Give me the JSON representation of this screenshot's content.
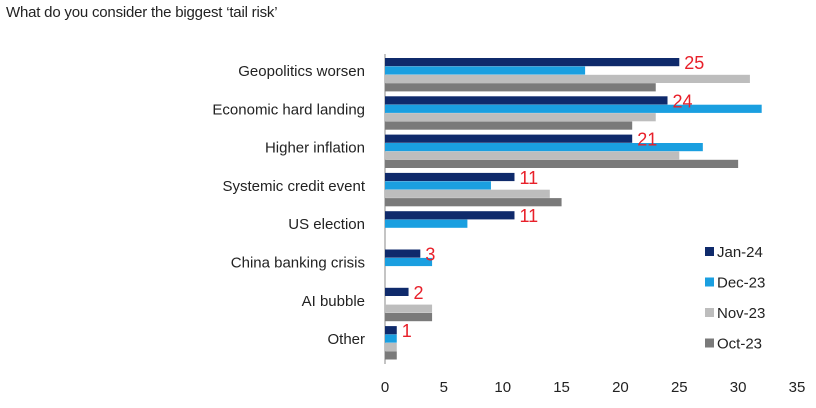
{
  "chart_data": {
    "type": "bar",
    "orientation": "horizontal",
    "title": "What do you consider the biggest ‘tail risk’",
    "categories": [
      "Geopolitics worsen",
      "Economic hard landing",
      "Higher inflation",
      "Systemic credit event",
      "US election",
      "China banking crisis",
      "AI bubble",
      "Other"
    ],
    "series": [
      {
        "name": "Jan-24",
        "color": "#0f2a6b",
        "values": [
          25,
          24,
          21,
          11,
          11,
          3,
          2,
          1
        ]
      },
      {
        "name": "Dec-23",
        "color": "#1a9fe0",
        "values": [
          17,
          32,
          27,
          9,
          7,
          4,
          null,
          1
        ]
      },
      {
        "name": "Nov-23",
        "color": "#bdbdbd",
        "values": [
          31,
          23,
          25,
          14,
          null,
          null,
          4,
          1
        ]
      },
      {
        "name": "Oct-23",
        "color": "#7a7a7a",
        "values": [
          23,
          21,
          30,
          15,
          null,
          null,
          4,
          1
        ]
      }
    ],
    "data_labels": [
      "25",
      "24",
      "21",
      "11",
      "11",
      "3",
      "2",
      "1"
    ],
    "xlim": [
      0,
      35
    ],
    "xticks": [
      "0",
      "5",
      "10",
      "15",
      "20",
      "25",
      "30",
      "35"
    ],
    "xlabel": "",
    "ylabel": "",
    "legend_position": "bottom-right",
    "label_color": "#e8202a"
  }
}
